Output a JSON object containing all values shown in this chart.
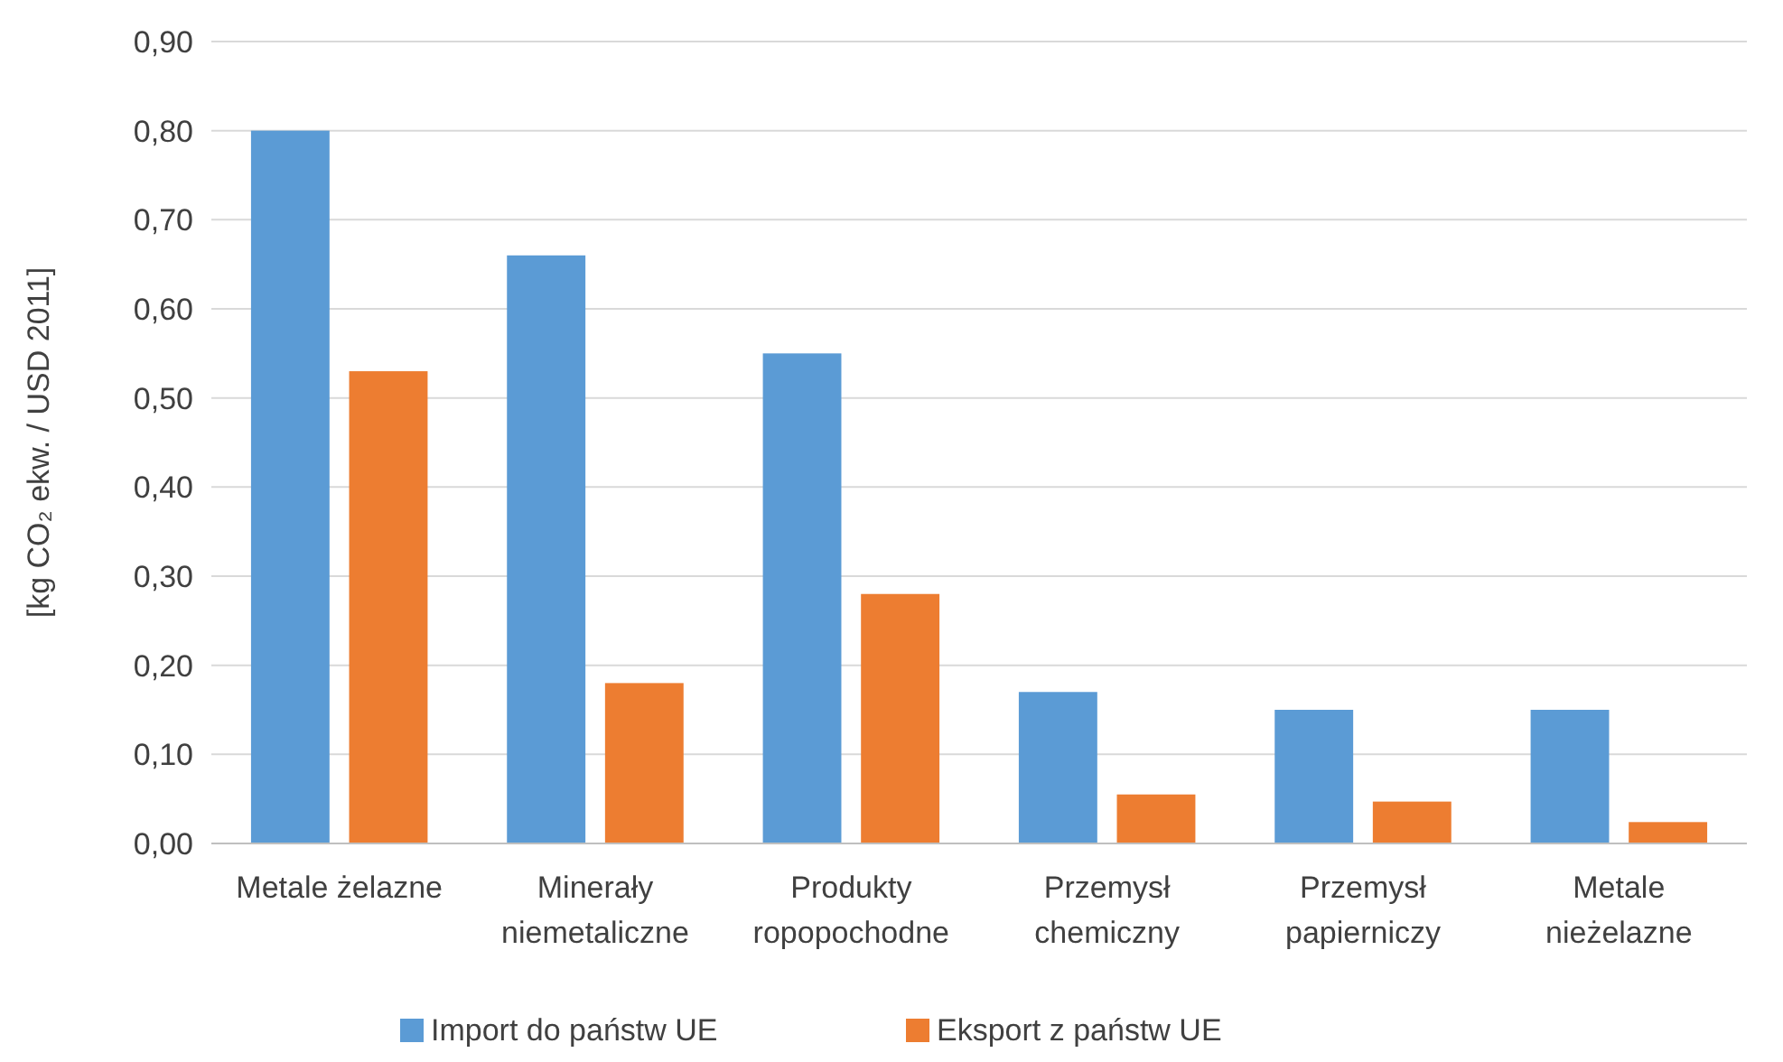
{
  "chart_data": {
    "type": "bar",
    "ylabel": "[kg CO₂ ekw. / USD 2011]",
    "categories": [
      "Metale żelazne",
      "Minerały niemetaliczne",
      "Produkty ropopochodne",
      "Przemysł chemiczny",
      "Przemysł papierniczy",
      "Metale nieżelazne"
    ],
    "series": [
      {
        "name": "Import do państw UE",
        "color": "#5b9bd5",
        "values": [
          0.8,
          0.66,
          0.55,
          0.17,
          0.15,
          0.15
        ]
      },
      {
        "name": "Eksport z państw UE",
        "color": "#ed7d31",
        "values": [
          0.53,
          0.18,
          0.28,
          0.055,
          0.047,
          0.024
        ]
      }
    ],
    "ylim": [
      0,
      0.9
    ],
    "yticks": [
      {
        "value": 0,
        "label": "0,00"
      },
      {
        "value": 0.1,
        "label": "0,10"
      },
      {
        "value": 0.2,
        "label": "0,20"
      },
      {
        "value": 0.3,
        "label": "0,30"
      },
      {
        "value": 0.4,
        "label": "0,40"
      },
      {
        "value": 0.5,
        "label": "0,50"
      },
      {
        "value": 0.6,
        "label": "0,60"
      },
      {
        "value": 0.7,
        "label": "0,70"
      },
      {
        "value": 0.8,
        "label": "0,80"
      },
      {
        "value": 0.9,
        "label": "0,90"
      }
    ],
    "grid": "y",
    "legend": "bottom"
  }
}
